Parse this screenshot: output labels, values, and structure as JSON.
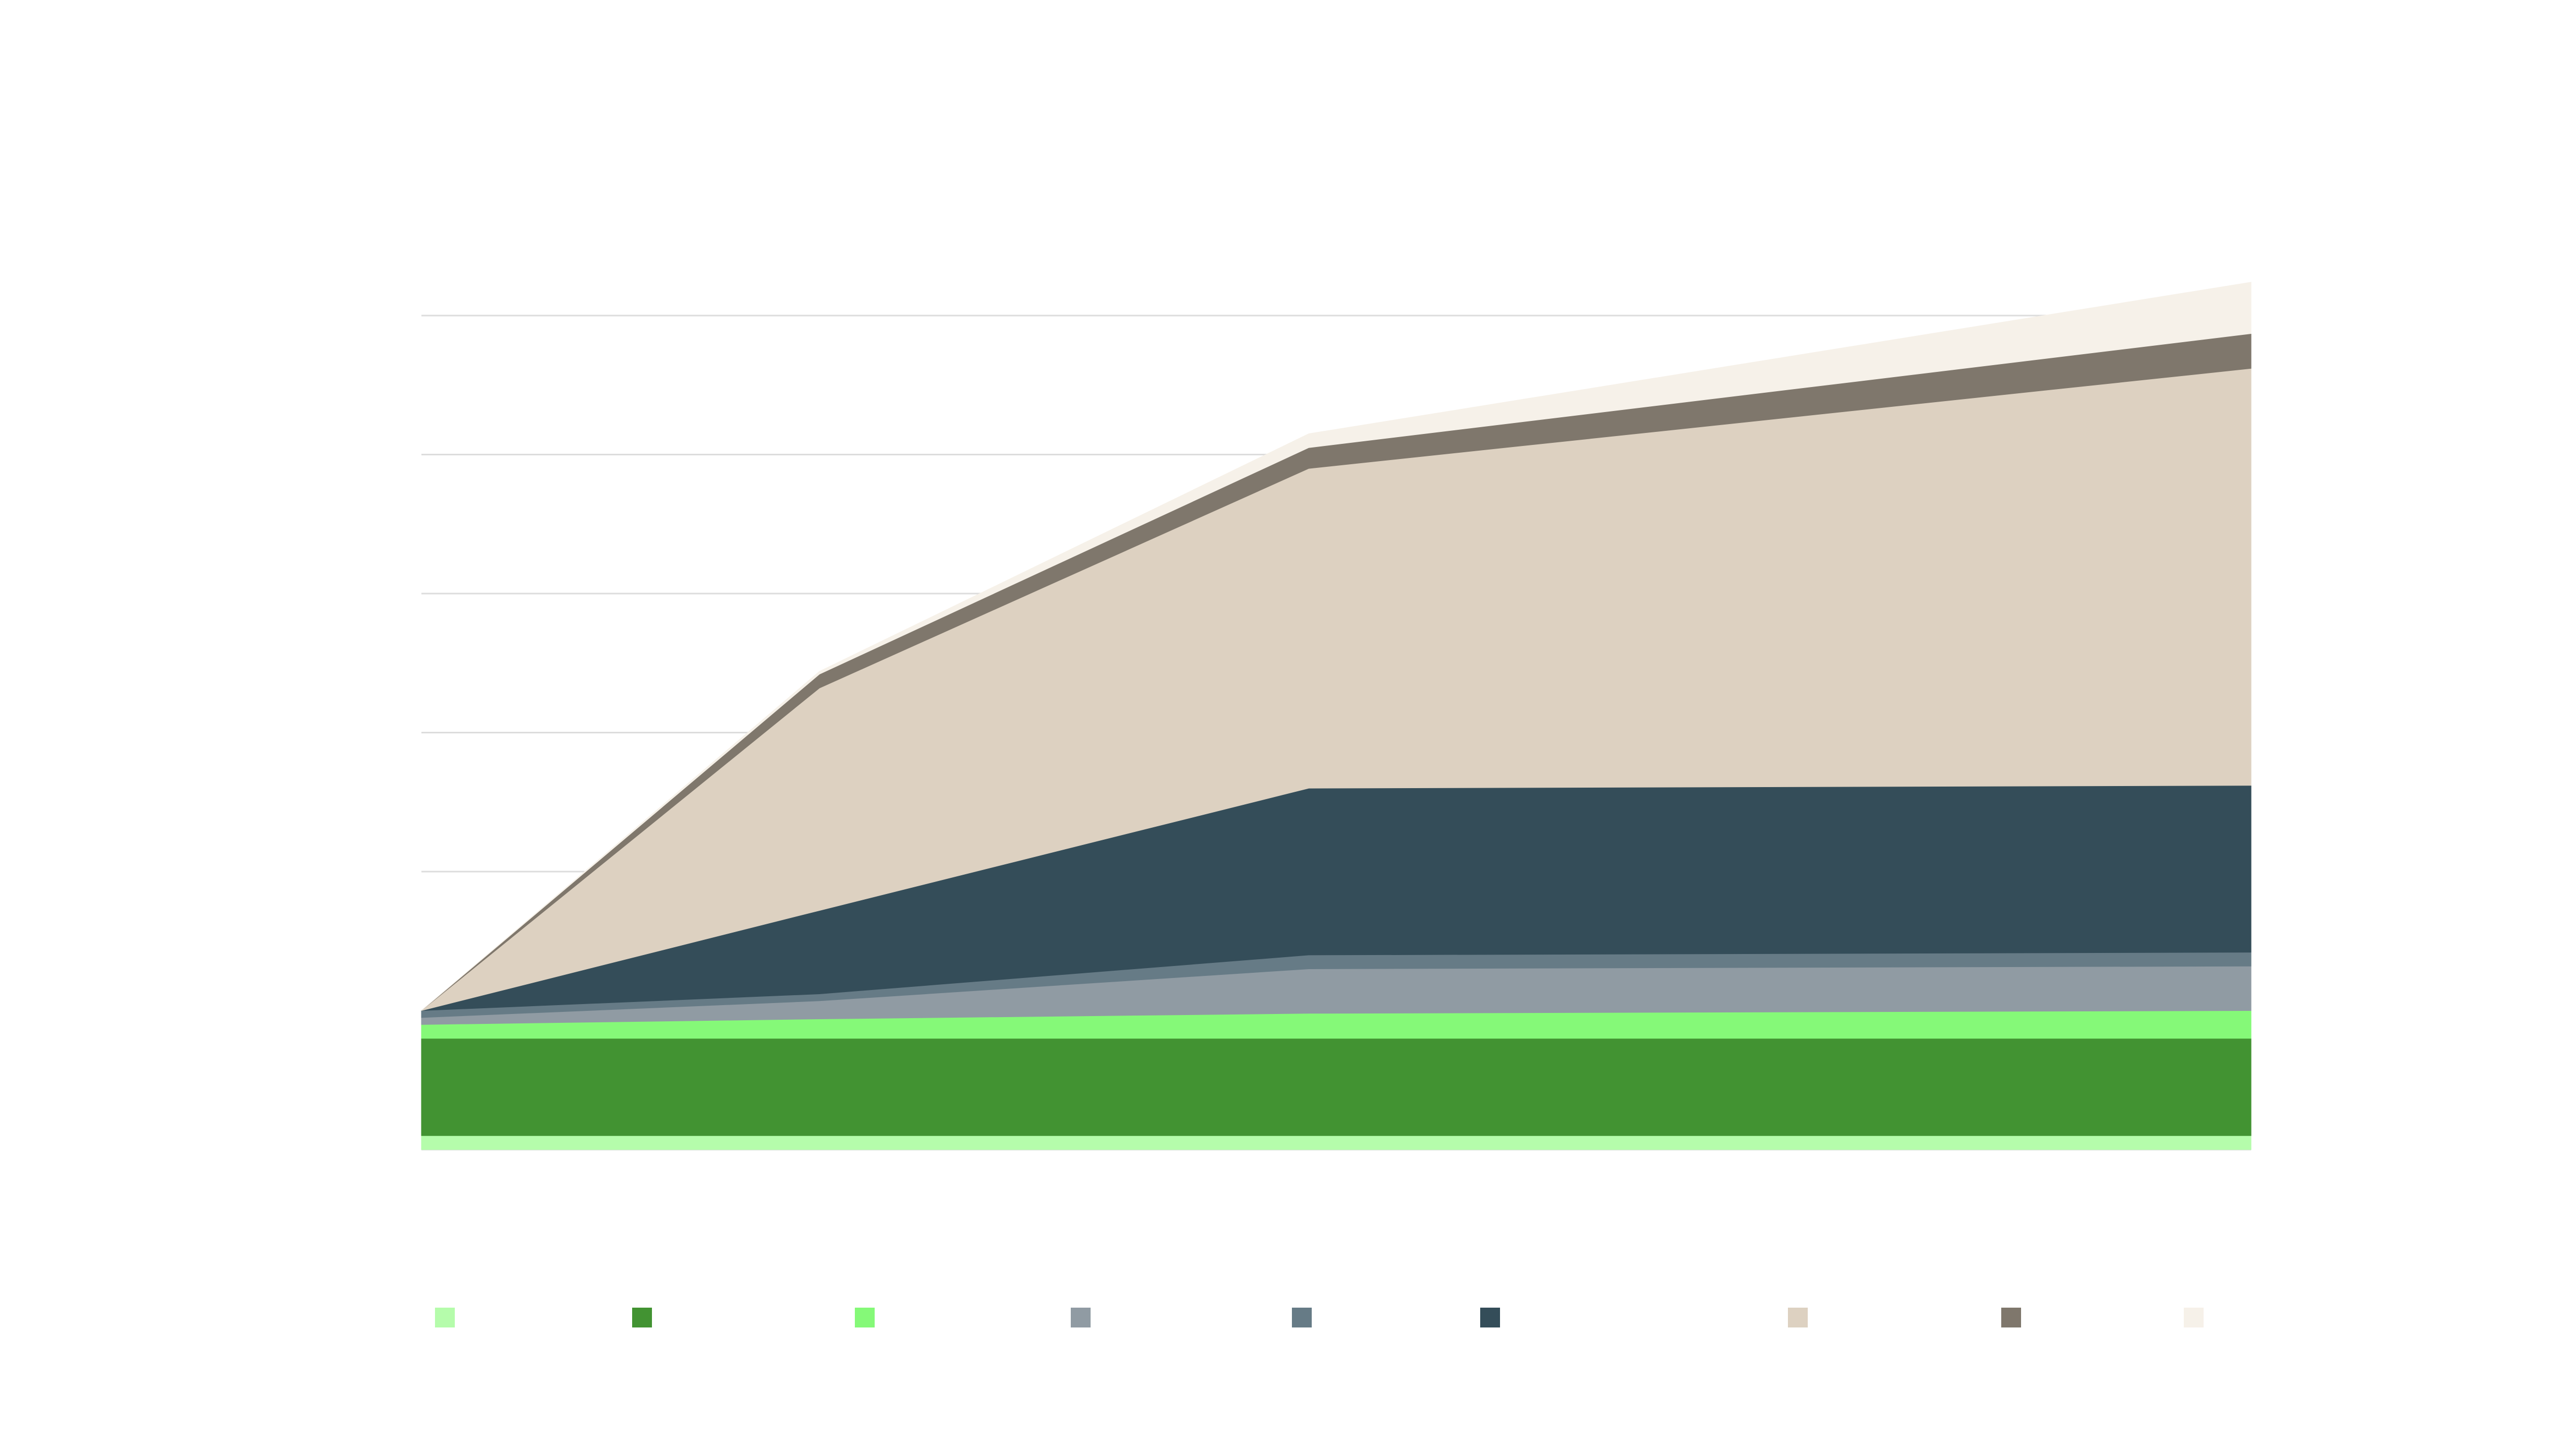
{
  "chart_data": {
    "type": "area",
    "stacked": true,
    "title": "",
    "xlabel": "",
    "ylabel": "",
    "x": [
      0,
      1,
      2,
      3
    ],
    "x_positions_relative": [
      0,
      0.2175,
      0.485,
      1.0
    ],
    "ylim": [
      0,
      6
    ],
    "grid": true,
    "legend": {
      "placement": "bottom"
    },
    "series": [
      {
        "values": [
          0.1,
          0.1,
          0.1,
          0.1
        ],
        "color": "#b5fcab"
      },
      {
        "values": [
          0.7,
          0.7,
          0.7,
          0.7
        ],
        "color": "#429332"
      },
      {
        "values": [
          0.1,
          0.14,
          0.18,
          0.2
        ],
        "color": "#85f978"
      },
      {
        "values": [
          0.05,
          0.13,
          0.32,
          0.32
        ],
        "color": "#909ba3"
      },
      {
        "values": [
          0.05,
          0.05,
          0.1,
          0.1
        ],
        "color": "#667b86"
      },
      {
        "values": [
          0.0,
          0.6,
          1.2,
          1.2
        ],
        "color": "#344d59"
      },
      {
        "values": [
          0.0,
          1.6,
          2.3,
          3.0
        ],
        "color": "#ddd1c1"
      },
      {
        "values": [
          0.0,
          0.1,
          0.15,
          0.25
        ],
        "color": "#7f776c"
      },
      {
        "values": [
          0.0,
          0.02,
          0.1,
          0.37
        ],
        "color": "#f6f1e9"
      }
    ]
  }
}
